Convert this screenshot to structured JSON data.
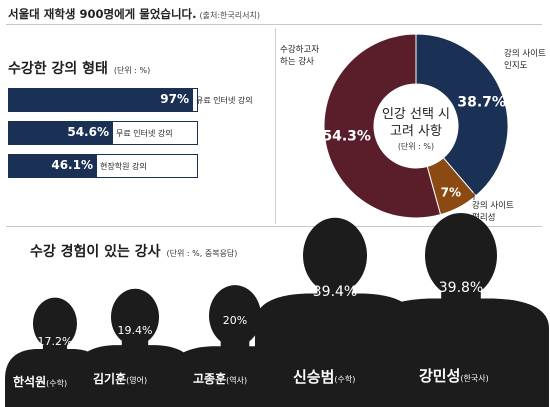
{
  "header": {
    "title": "서울대 재학생 900명에게 물었습니다.",
    "source": "(출처:한국리서치)"
  },
  "left_chart": {
    "title": "수강한 강의 형태",
    "unit": "(단위 : %)"
  },
  "pie_chart": {
    "center_label_line1": "인강 선택 시",
    "center_label_line2": "고려 사항",
    "center_unit": "(단위 : %)"
  },
  "bottom_chart": {
    "title": "수강 경험이 있는 강사",
    "unit": "(단위 : %, 중복응답)"
  },
  "colors": {
    "navy": "#1a3155",
    "maroon": "#5a1e2b",
    "brown": "#8a4a12",
    "silhouette": "#1c1c1c"
  },
  "chart_data": [
    {
      "type": "bar",
      "orientation": "horizontal",
      "title": "수강한 강의 형태",
      "unit": "(단위 : %)",
      "categories": [
        "유료 인터넷 강의",
        "무료 인터넷 강의",
        "현장학원 강의"
      ],
      "values": [
        97,
        54.6,
        46.1
      ],
      "value_labels": [
        "97%",
        "54.6%",
        "46.1%"
      ],
      "xlim": [
        0,
        100
      ]
    },
    {
      "type": "pie",
      "title": "인강 선택 시 고려 사항",
      "unit": "(단위 : %)",
      "categories": [
        "강의 사이트 인지도",
        "강의 사이트 편리성",
        "수강하고자 하는 강사"
      ],
      "values": [
        38.7,
        7,
        54.3
      ],
      "value_labels": [
        "38.7%",
        "7%",
        "54.3%"
      ],
      "label_lines": [
        [
          "강의 사이트",
          "인지도"
        ],
        [
          "강의 사이트",
          "편리성"
        ],
        [
          "수강하고자",
          "하는 강사"
        ]
      ],
      "colors": [
        "#1a3155",
        "#8a4a12",
        "#5a1e2b"
      ]
    },
    {
      "type": "bar",
      "title": "수강 경험이 있는 강사",
      "unit": "(단위 : %, 중복응답)",
      "categories": [
        "한석원",
        "김기훈",
        "고종훈",
        "신승범",
        "강민성"
      ],
      "subjects": [
        "(수학)",
        "(영어)",
        "(역사)",
        "(수학)",
        "(한국사)"
      ],
      "values": [
        17.2,
        19.4,
        20,
        39.4,
        39.8
      ],
      "value_labels": [
        "17.2%",
        "19.4%",
        "20%",
        "39.4%",
        "39.8%"
      ],
      "ylim": [
        0,
        45
      ]
    }
  ]
}
